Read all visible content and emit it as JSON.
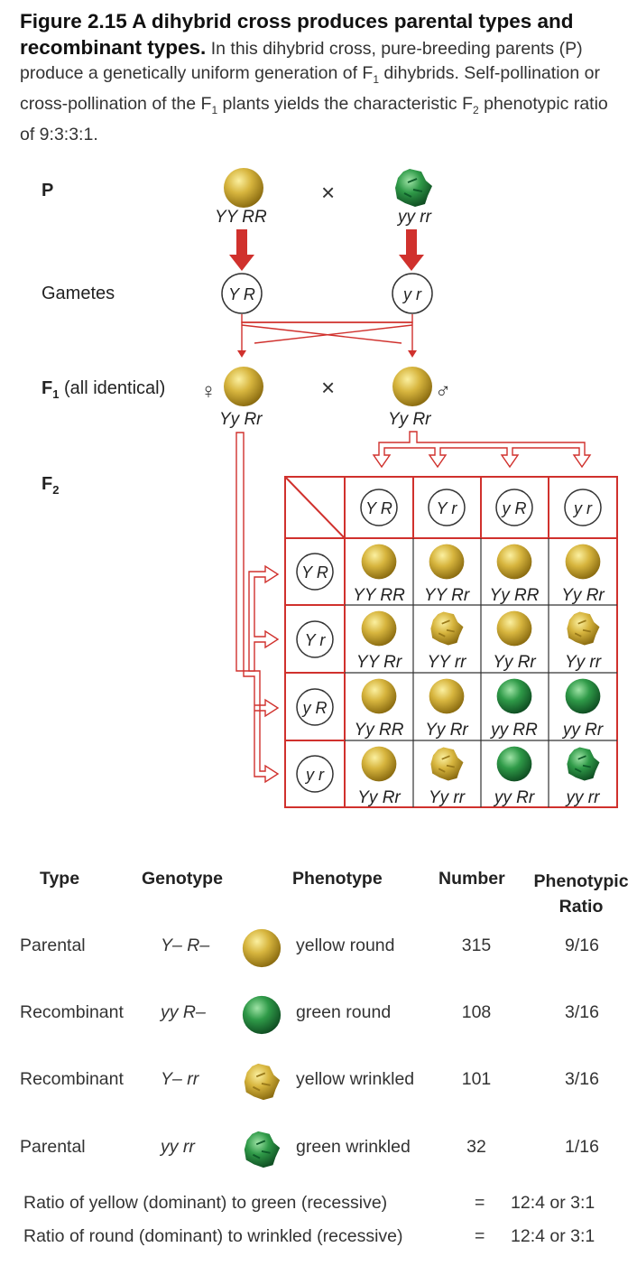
{
  "caption": {
    "figure_label": "Figure 2.15",
    "title": "A dihybrid cross produces parental types and recombinant types.",
    "body_1": "In this dihybrid cross, pure-breeding parents (P) produce a genetically uniform generation of F",
    "body_2": " dihybrids. Self-pollination or cross-pollination of the F",
    "body_3": " plants yields the characteristic F",
    "body_4": " phenotypic ratio of 9:3:3:1.",
    "sub1": "1",
    "sub2": "2"
  },
  "labels": {
    "p": "P",
    "gametes": "Gametes",
    "f1_prefix": "F",
    "f1_sub": "1",
    "f1_rest": " (all identical)",
    "f2_prefix": "F",
    "f2_sub": "2",
    "cross": "×",
    "female_symbol": "♀",
    "male_symbol": "♂"
  },
  "parents": {
    "left_genotype": "YY RR",
    "right_genotype": "yy rr",
    "left_gamete": "Y R",
    "right_gamete": "y r"
  },
  "f1": {
    "left_genotype": "Yy Rr",
    "right_genotype": "Yy Rr"
  },
  "punnett": {
    "col_gametes": [
      "Y R",
      "Y r",
      "y R",
      "y r"
    ],
    "row_gametes": [
      "Y R",
      "Y r",
      "y R",
      "y r"
    ],
    "cells": [
      [
        {
          "g": "YY RR",
          "p": "yellow-round"
        },
        {
          "g": "YY Rr",
          "p": "yellow-round"
        },
        {
          "g": "Yy RR",
          "p": "yellow-round"
        },
        {
          "g": "Yy Rr",
          "p": "yellow-round"
        }
      ],
      [
        {
          "g": "YY Rr",
          "p": "yellow-round"
        },
        {
          "g": "YY rr",
          "p": "yellow-wrinkled"
        },
        {
          "g": "Yy Rr",
          "p": "yellow-round"
        },
        {
          "g": "Yy rr",
          "p": "yellow-wrinkled"
        }
      ],
      [
        {
          "g": "Yy RR",
          "p": "yellow-round"
        },
        {
          "g": "Yy Rr",
          "p": "yellow-round"
        },
        {
          "g": "yy RR",
          "p": "green-round"
        },
        {
          "g": "yy Rr",
          "p": "green-round"
        }
      ],
      [
        {
          "g": "Yy Rr",
          "p": "yellow-round"
        },
        {
          "g": "Yy rr",
          "p": "yellow-wrinkled"
        },
        {
          "g": "yy Rr",
          "p": "green-round"
        },
        {
          "g": "yy rr",
          "p": "green-wrinkled"
        }
      ]
    ]
  },
  "results": {
    "headers": {
      "type": "Type",
      "genotype": "Genotype",
      "phenotype": "Phenotype",
      "number": "Number",
      "ratio_1": "Phenotypic",
      "ratio_2": "Ratio"
    },
    "rows": [
      {
        "type": "Parental",
        "genotype": "Y– R–",
        "pea": "yellow-round",
        "phenotype": "yellow round",
        "number": "315",
        "ratio": "9/16"
      },
      {
        "type": "Recombinant",
        "genotype": "yy R–",
        "pea": "green-round",
        "phenotype": "green round",
        "number": "108",
        "ratio": "3/16"
      },
      {
        "type": "Recombinant",
        "genotype": "Y– rr",
        "pea": "yellow-wrinkled",
        "phenotype": "yellow wrinkled",
        "number": "101",
        "ratio": "3/16"
      },
      {
        "type": "Parental",
        "genotype": "yy rr",
        "pea": "green-wrinkled",
        "phenotype": "green wrinkled",
        "number": "32",
        "ratio": "1/16"
      }
    ],
    "ratio_lines": [
      {
        "label": "Ratio of yellow (dominant) to green (recessive)",
        "eq": "=",
        "value": "12:4 or 3:1"
      },
      {
        "label": "Ratio of round (dominant) to wrinkled (recessive)",
        "eq": "=",
        "value": "12:4 or 3:1"
      }
    ]
  },
  "colors": {
    "arrow_red": "#d0312d",
    "yellow_pea": "#d4b33c",
    "green_pea": "#2f9a48",
    "grid_line": "#333333"
  }
}
